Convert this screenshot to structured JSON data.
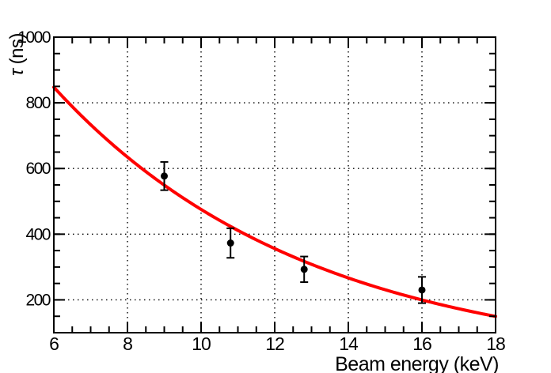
{
  "page": {
    "background": "#ffffff"
  },
  "chart_data": {
    "type": "scatter",
    "title": "",
    "xlabel": "Beam energy (keV)",
    "ylabel": "τ (ns)",
    "ylabel_symbol": "τ",
    "ylabel_units": " (ns)",
    "xlim": [
      6,
      18
    ],
    "ylim": [
      100,
      1000
    ],
    "x_major_ticks": [
      6,
      8,
      10,
      12,
      14,
      16,
      18
    ],
    "x_tick_labels": [
      "6",
      "8",
      "10",
      "12",
      "14",
      "16",
      "18"
    ],
    "x_minor_tick_step": 0.5,
    "y_major_ticks": [
      200,
      400,
      600,
      800,
      1000
    ],
    "y_tick_labels": [
      "200",
      "400",
      "600",
      "800",
      "1000"
    ],
    "y_minor_tick_step": 50,
    "grid": {
      "style": "dotted",
      "x_lines": [
        8,
        10,
        12,
        14,
        16
      ],
      "y_lines": [
        200,
        400,
        600,
        800
      ]
    },
    "colors": {
      "curve": "#ff0000",
      "points": "#000000",
      "axis": "#000000",
      "grid": "#000000"
    },
    "series": [
      {
        "name": "measured-lifetimes",
        "type": "scatter",
        "marker": "filled-circle",
        "points": [
          {
            "x": 9.0,
            "y": 577,
            "ey": 43
          },
          {
            "x": 10.8,
            "y": 373,
            "ey": 45
          },
          {
            "x": 12.8,
            "y": 293,
            "ey": 39
          },
          {
            "x": 16.0,
            "y": 230,
            "ey": 40
          }
        ]
      },
      {
        "name": "fit-curve",
        "type": "line",
        "fit": {
          "form": "A*exp(-x/E0)",
          "A": 2017,
          "E0": 6.92
        },
        "samples": [
          [
            6,
            848
          ],
          [
            7,
            732
          ],
          [
            8,
            635
          ],
          [
            9,
            549
          ],
          [
            10,
            475
          ],
          [
            11,
            411
          ],
          [
            12,
            356
          ],
          [
            13,
            308
          ],
          [
            14,
            267
          ],
          [
            15,
            231
          ],
          [
            16,
            200
          ],
          [
            17,
            173
          ],
          [
            18,
            150
          ]
        ]
      }
    ]
  }
}
